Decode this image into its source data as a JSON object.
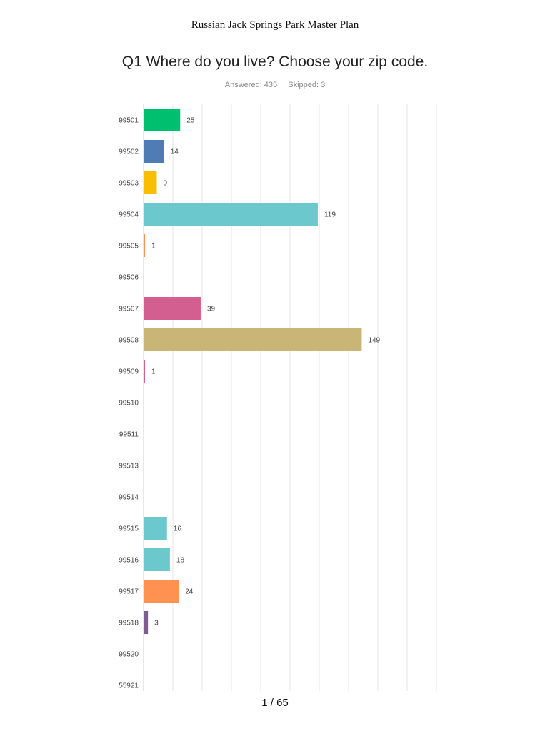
{
  "header": {
    "title": "Russian Jack Springs Park Master Plan"
  },
  "question": {
    "title": "Q1 Where do you live?  Choose your zip code.",
    "answered": "Answered: 435",
    "skipped": "Skipped: 3"
  },
  "footer": {
    "page": "1 / 65"
  },
  "chart_data": {
    "type": "bar",
    "orientation": "horizontal",
    "title": "",
    "xlabel": "",
    "ylabel": "",
    "xlim": [
      0,
      200
    ],
    "grid": true,
    "categories": [
      "99501",
      "99502",
      "99503",
      "99504",
      "99505",
      "99506",
      "99507",
      "99508",
      "99509",
      "99510",
      "99511",
      "99513",
      "99514",
      "99515",
      "99516",
      "99517",
      "99518",
      "99520",
      "55921"
    ],
    "values": [
      25,
      14,
      9,
      119,
      1,
      0,
      39,
      149,
      1,
      0,
      0,
      0,
      0,
      16,
      18,
      24,
      3,
      0,
      0
    ],
    "colors": [
      "#00bf6f",
      "#507cb6",
      "#f9be00",
      "#6bc8cd",
      "#ff9151",
      "#7d5e90",
      "#d25f90",
      "#c9b677",
      "#d25f90",
      "#6bc8cd",
      "#ff9151",
      "#7d5e90",
      "#d25f90",
      "#6bc8cd",
      "#6bc8cd",
      "#ff9151",
      "#7d5e90",
      "#d25f90",
      "#c9b677"
    ]
  }
}
